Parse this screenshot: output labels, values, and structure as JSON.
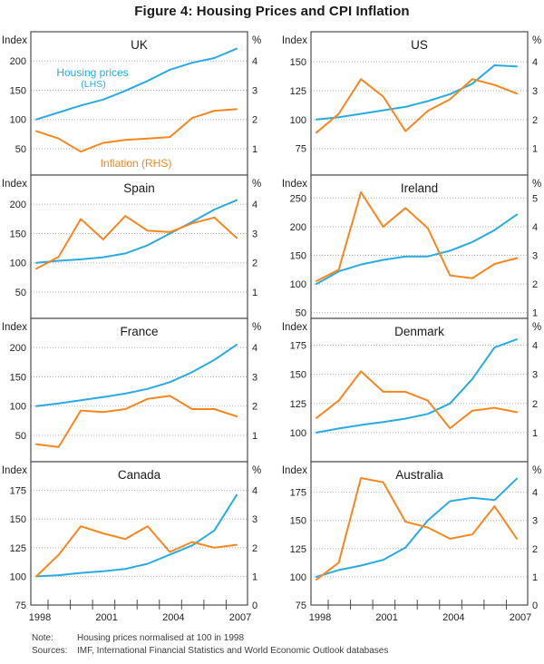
{
  "figure": {
    "title": "Figure 4: Housing Prices and CPI Inflation"
  },
  "axes": {
    "left_unit": "Index",
    "right_unit": "%"
  },
  "legend": {
    "housing_label": "Housing prices",
    "housing_axis": "(LHS)",
    "inflation_label": "Inflation (RHS)"
  },
  "note": {
    "label": "Note:",
    "text": "Housing prices normalised at 100 in 1998"
  },
  "sources": {
    "label": "Sources:",
    "text": "IMF, International Financial Statistics and World Economic Outlook databases"
  },
  "colors": {
    "housing": "#29ABE2",
    "inflation": "#F6871F",
    "grid": "#B3B3B3",
    "border": "#4D4D4D",
    "text": "#1A1A1A"
  },
  "chart_data": {
    "type": "line",
    "years": [
      1998,
      1999,
      2000,
      2001,
      2002,
      2003,
      2004,
      2005,
      2006,
      2007
    ],
    "x_tick_label_years": [
      1998,
      2001,
      2004,
      2007
    ],
    "series_info": [
      {
        "name": "Housing prices",
        "axis": "LHS",
        "unit": "Index (1998 = 100)"
      },
      {
        "name": "Inflation",
        "axis": "RHS",
        "unit": "%"
      }
    ],
    "panels": [
      {
        "country": "UK",
        "left_ticks": [
          50,
          100,
          150,
          200
        ],
        "right_ticks": [
          1,
          2,
          3,
          4
        ],
        "ylim": [
          5,
          250
        ],
        "housing_index": [
          100,
          112,
          124,
          134,
          149,
          166,
          185,
          197,
          205,
          221
        ],
        "inflation_pct": [
          1.6,
          1.35,
          0.9,
          1.2,
          1.3,
          1.35,
          1.4,
          2.05,
          2.3,
          2.35
        ],
        "show_legend": true
      },
      {
        "country": "US",
        "left_ticks": [
          75,
          100,
          125,
          150
        ],
        "right_ticks": [
          1,
          2,
          3,
          4
        ],
        "ylim": [
          52,
          176
        ],
        "housing_index": [
          100,
          102,
          105,
          108,
          111,
          116,
          122,
          131,
          147,
          146
        ],
        "inflation_pct": [
          1.55,
          2.2,
          3.4,
          2.8,
          1.6,
          2.3,
          2.7,
          3.4,
          3.2,
          2.9
        ],
        "show_legend": false
      },
      {
        "country": "Spain",
        "left_ticks": [
          50,
          100,
          150,
          200
        ],
        "right_ticks": [
          1,
          2,
          3,
          4
        ],
        "ylim": [
          5,
          250
        ],
        "housing_index": [
          100,
          103.5,
          106,
          109.5,
          116,
          130,
          150,
          170,
          191,
          207
        ],
        "inflation_pct": [
          1.8,
          2.2,
          3.5,
          2.8,
          3.6,
          3.1,
          3.05,
          3.35,
          3.55,
          2.85
        ],
        "show_legend": false
      },
      {
        "country": "Ireland",
        "left_ticks": [
          50,
          100,
          150,
          200,
          250
        ],
        "right_ticks": [
          1,
          2,
          3,
          4,
          5
        ],
        "ylim": [
          40,
          290
        ],
        "housing_index": [
          100,
          122,
          134,
          142,
          148,
          148,
          158,
          173,
          194,
          221
        ],
        "inflation_pct": [
          2.1,
          2.5,
          5.2,
          4.0,
          4.65,
          3.95,
          2.3,
          2.2,
          2.7,
          2.9
        ],
        "show_legend": false
      },
      {
        "country": "France",
        "left_ticks": [
          50,
          100,
          150,
          200
        ],
        "right_ticks": [
          1,
          2,
          3,
          4
        ],
        "ylim": [
          5,
          250
        ],
        "housing_index": [
          100,
          104.5,
          110,
          115.5,
          121.5,
          129.5,
          141,
          158,
          179,
          205
        ],
        "inflation_pct": [
          0.7,
          0.6,
          1.85,
          1.8,
          1.9,
          2.25,
          2.35,
          1.9,
          1.9,
          1.65
        ],
        "show_legend": false
      },
      {
        "country": "Denmark",
        "left_ticks": [
          100,
          125,
          150,
          175
        ],
        "right_ticks": [
          1,
          2,
          3,
          4
        ],
        "ylim": [
          75,
          198
        ],
        "housing_index": [
          100,
          103.5,
          106.5,
          109,
          112,
          116,
          125,
          146,
          173,
          180
        ],
        "inflation_pct": [
          1.5,
          2.1,
          3.1,
          2.4,
          2.4,
          2.1,
          1.15,
          1.75,
          1.85,
          1.7
        ],
        "show_legend": false
      },
      {
        "country": "Canada",
        "left_ticks": [
          75,
          100,
          125,
          150,
          175
        ],
        "right_ticks": [
          0,
          1,
          2,
          3,
          4
        ],
        "ylim": [
          75,
          200
        ],
        "housing_index": [
          100,
          101,
          103,
          104.5,
          106.5,
          111,
          119,
          127,
          140,
          171
        ],
        "inflation_pct": [
          1.0,
          1.75,
          2.75,
          2.5,
          2.3,
          2.75,
          1.85,
          2.2,
          2.0,
          2.1
        ],
        "show_legend": false
      },
      {
        "country": "Australia",
        "left_ticks": [
          75,
          100,
          125,
          150,
          175
        ],
        "right_ticks": [
          0,
          1,
          2,
          3,
          4
        ],
        "ylim": [
          75,
          202
        ],
        "housing_index": [
          100,
          106,
          110,
          115,
          126,
          150,
          167,
          170,
          168,
          187
        ],
        "inflation_pct": [
          0.9,
          1.5,
          4.5,
          4.35,
          2.95,
          2.75,
          2.35,
          2.5,
          3.5,
          2.35
        ],
        "show_legend": false
      }
    ]
  }
}
